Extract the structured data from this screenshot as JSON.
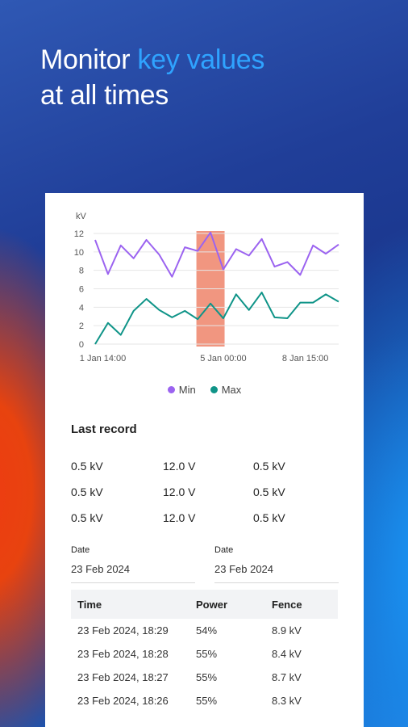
{
  "headline": {
    "line1_prefix": "Monitor ",
    "line1_accent": "key values",
    "line2": "at all times"
  },
  "chart_data": {
    "type": "line",
    "ylabel": "kV",
    "ylim": [
      0,
      12
    ],
    "yticks": [
      "0",
      "2",
      "4",
      "6",
      "8",
      "10",
      "12"
    ],
    "xticks": [
      "1 Jan 14:00",
      "5 Jan 00:00",
      "8 Jan 15:00"
    ],
    "grid": true,
    "legend_position": "bottom",
    "highlight_color": "#ef8b72",
    "series": [
      {
        "name": "Min",
        "color": "#9b63f0",
        "values": [
          11.3,
          7.6,
          10.7,
          9.3,
          11.3,
          9.7,
          7.3,
          10.5,
          10.1,
          12.1,
          8.1,
          10.3,
          9.6,
          11.4,
          8.4,
          8.9,
          7.5,
          10.7,
          9.8,
          10.8
        ]
      },
      {
        "name": "Max",
        "color": "#0f9488",
        "values": [
          0.0,
          2.3,
          1.0,
          3.6,
          4.9,
          3.7,
          2.9,
          3.6,
          2.7,
          4.4,
          2.8,
          5.4,
          3.7,
          5.6,
          2.9,
          2.8,
          4.5,
          4.5,
          5.4,
          4.6
        ]
      }
    ]
  },
  "last_record": {
    "title": "Last record",
    "rows": [
      [
        "0.5 kV",
        "12.0 V",
        "0.5 kV"
      ],
      [
        "0.5 kV",
        "12.0 V",
        "0.5 kV"
      ],
      [
        "0.5 kV",
        "12.0 V",
        "0.5 kV"
      ]
    ]
  },
  "date_filters": [
    {
      "label": "Date",
      "value": "23 Feb 2024"
    },
    {
      "label": "Date",
      "value": "23 Feb 2024"
    }
  ],
  "records_table": {
    "headers": [
      "Time",
      "Power",
      "Fence"
    ],
    "rows": [
      [
        "23 Feb 2024, 18:29",
        "54%",
        "8.9 kV"
      ],
      [
        "23 Feb 2024, 18:28",
        "55%",
        "8.4 kV"
      ],
      [
        "23 Feb 2024, 18:27",
        "55%",
        "8.7 kV"
      ],
      [
        "23 Feb 2024, 18:26",
        "55%",
        "8.3 kV"
      ]
    ]
  }
}
